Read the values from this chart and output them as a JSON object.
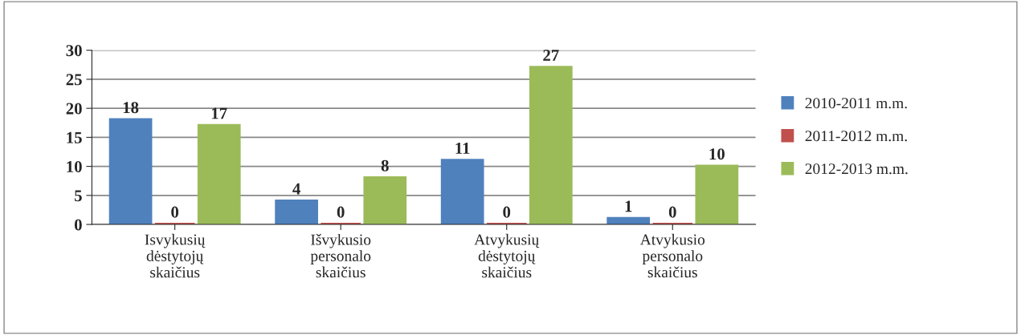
{
  "chart_data": {
    "type": "bar",
    "categories": [
      "Isvykusių\ndėstytojų\nskaičius",
      "Išvykusio\npersonalo\nskaičius",
      "Atvykusių\ndėstytojų\nskaičius",
      "Atvykusio\npersonalo\nskaičius"
    ],
    "series": [
      {
        "name": "2010-2011 m.m.",
        "color": "#4f81bd",
        "values": [
          18,
          4,
          11,
          1
        ]
      },
      {
        "name": "2011-2012 m.m.",
        "color": "#c0504d",
        "values": [
          0,
          0,
          0,
          0
        ]
      },
      {
        "name": "2012-2013 m.m.",
        "color": "#9bbb59",
        "values": [
          17,
          8,
          27,
          10
        ]
      }
    ],
    "ylim": [
      0,
      30
    ],
    "yticks": [
      0,
      5,
      10,
      15,
      20,
      25,
      30
    ],
    "grid": "y",
    "legend": "right",
    "data_labels": true
  }
}
